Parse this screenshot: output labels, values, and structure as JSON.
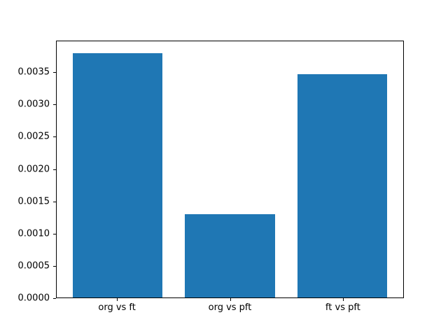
{
  "chart_data": {
    "type": "bar",
    "title": "",
    "xlabel": "",
    "ylabel": "",
    "categories": [
      "org vs ft",
      "org vs pft",
      "ft vs pft"
    ],
    "values": [
      0.0038,
      0.0013,
      0.00348
    ],
    "bar_color": "#1f77b4",
    "ylim": [
      0,
      0.00399
    ],
    "yticks": [
      0.0,
      0.0005,
      0.001,
      0.0015,
      0.002,
      0.0025,
      0.003,
      0.0035
    ],
    "ytick_labels": [
      "0.0000",
      "0.0005",
      "0.0010",
      "0.0015",
      "0.0020",
      "0.0025",
      "0.0030",
      "0.0035"
    ],
    "grid": false,
    "legend": "none",
    "bar_width_fraction": 0.8,
    "x_axis_units_span": 3.08,
    "x_axis_left_pad_units": 0.54
  }
}
